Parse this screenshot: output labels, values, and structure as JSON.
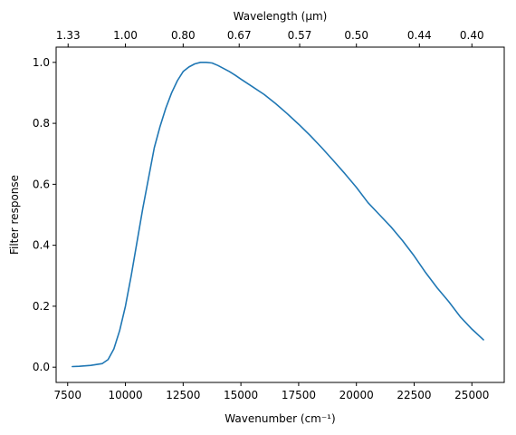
{
  "chart_data": {
    "type": "line",
    "title": "",
    "xlabel": "Wavenumber (cm⁻¹)",
    "ylabel": "Filter response",
    "top_xlabel": "Wavelength (μm)",
    "xlim": [
      7000,
      26400
    ],
    "ylim": [
      -0.05,
      1.05
    ],
    "x_ticks": [
      7500,
      10000,
      12500,
      15000,
      17500,
      20000,
      22500,
      25000
    ],
    "x_tick_labels": [
      "7500",
      "10000",
      "12500",
      "15000",
      "17500",
      "20000",
      "22500",
      "25000"
    ],
    "y_ticks": [
      0.0,
      0.2,
      0.4,
      0.6,
      0.8,
      1.0
    ],
    "y_tick_labels": [
      "0.0",
      "0.2",
      "0.4",
      "0.6",
      "0.8",
      "1.0"
    ],
    "top_ticks_wavelength_um": [
      1.33,
      1.0,
      0.8,
      0.67,
      0.57,
      0.5,
      0.44,
      0.4
    ],
    "top_tick_labels": [
      "1.33",
      "1.00",
      "0.80",
      "0.67",
      "0.57",
      "0.50",
      "0.44",
      "0.40"
    ],
    "grid": false,
    "legend": "none",
    "series": [
      {
        "color": "#1f77b4",
        "x": [
          7700,
          8000,
          8500,
          9000,
          9250,
          9500,
          9750,
          10000,
          10250,
          10500,
          10750,
          11000,
          11250,
          11500,
          11750,
          12000,
          12250,
          12500,
          12750,
          13000,
          13250,
          13500,
          13750,
          14000,
          14250,
          14500,
          14750,
          15000,
          15500,
          16000,
          16500,
          17000,
          17500,
          18000,
          18500,
          19000,
          19500,
          20000,
          20500,
          21000,
          21500,
          22000,
          22500,
          23000,
          23500,
          24000,
          24500,
          25000,
          25500
        ],
        "y": [
          0.002,
          0.003,
          0.006,
          0.012,
          0.025,
          0.06,
          0.12,
          0.2,
          0.3,
          0.41,
          0.52,
          0.62,
          0.72,
          0.79,
          0.85,
          0.9,
          0.94,
          0.97,
          0.985,
          0.995,
          1.0,
          1.0,
          0.998,
          0.99,
          0.98,
          0.97,
          0.958,
          0.945,
          0.92,
          0.895,
          0.865,
          0.832,
          0.797,
          0.76,
          0.72,
          0.678,
          0.635,
          0.59,
          0.54,
          0.5,
          0.46,
          0.415,
          0.365,
          0.31,
          0.26,
          0.215,
          0.165,
          0.125,
          0.09
        ]
      }
    ]
  }
}
